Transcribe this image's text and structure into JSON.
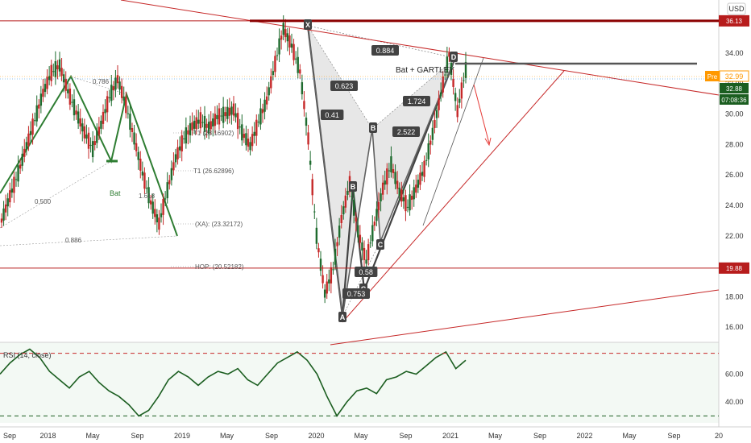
{
  "chart_data": {
    "type": "candlestick",
    "currency": "USD",
    "time_ticks": [
      "Sep",
      "2018",
      "May",
      "Sep",
      "2019",
      "May",
      "Sep",
      "2020",
      "May",
      "Sep",
      "2021",
      "May",
      "Sep",
      "2022",
      "May",
      "Sep",
      "20"
    ],
    "price_ticks": [
      16.0,
      18.0,
      20.0,
      22.0,
      24.0,
      26.0,
      28.0,
      30.0,
      32.0,
      34.0
    ],
    "price_range": [
      15.0,
      37.5
    ],
    "rsi": {
      "label": "RSI (14, close)",
      "ticks": [
        40.0,
        60.0
      ],
      "range": [
        25,
        80
      ],
      "upper_band": 75,
      "lower_band": 30
    },
    "horizontal_levels": [
      {
        "value": 36.13,
        "label": "36.13",
        "color": "#b71c1c"
      },
      {
        "value": 19.88,
        "label": "19.88",
        "color": "#b71c1c"
      }
    ],
    "current_price": {
      "pre_label": "Pre",
      "pre_value": "32.99",
      "value": "32.88",
      "countdown": "07:08:36"
    },
    "patterns": {
      "right": {
        "title": "Bat + GARTLEY",
        "points": [
          {
            "name": "X",
            "t": 2019.92,
            "p": 36.4
          },
          {
            "name": "A",
            "t": 2020.22,
            "p": 17.5
          },
          {
            "name": "B",
            "t": 2020.26,
            "p": 25.4
          },
          {
            "name": "C",
            "t": 2020.3,
            "p": 19.9
          },
          {
            "name": "D",
            "t": 2021.0,
            "p": 33.9
          },
          {
            "name": "B",
            "t": 2020.42,
            "p": 30.0
          },
          {
            "name": "C",
            "t": 2020.48,
            "p": 22.0
          }
        ],
        "ratios": [
          "0.884",
          "0.623",
          "0.41",
          "1.724",
          "2.522",
          "0.58",
          "0.753"
        ]
      },
      "left": {
        "title": "Bat",
        "ratios": [
          "0.786",
          "0.500",
          "1.618",
          "0.886"
        ],
        "levels": [
          "T1 (28.16902)",
          "T1 (26.62896)",
          "(XA): (23.32172)",
          "HOP: (20.52182)"
        ]
      }
    },
    "series": [
      {
        "name": "Price",
        "values": [
          23.0,
          24.6,
          26.1,
          27.9,
          29.6,
          31.4,
          32.7,
          33.2,
          31.5,
          30.1,
          28.8,
          27.7,
          29.3,
          31.1,
          32.3,
          30.6,
          28.4,
          26.1,
          24.2,
          22.8,
          25.0,
          27.1,
          28.4,
          29.2,
          29.6,
          29.1,
          29.8,
          30.0,
          30.3,
          28.8,
          27.9,
          29.5,
          30.9,
          33.3,
          35.6,
          34.5,
          32.8,
          28.4,
          22.0,
          18.2,
          19.8,
          23.1,
          25.4,
          22.3,
          20.3,
          22.8,
          25.1,
          26.7,
          24.9,
          23.9,
          25.1,
          26.4,
          28.7,
          31.3,
          33.9,
          30.2,
          32.9
        ]
      },
      {
        "name": "RSI",
        "values": [
          60,
          68,
          74,
          78,
          72,
          62,
          56,
          50,
          58,
          62,
          54,
          48,
          44,
          38,
          30,
          34,
          44,
          56,
          62,
          58,
          52,
          58,
          62,
          60,
          64,
          56,
          52,
          60,
          68,
          72,
          76,
          70,
          60,
          44,
          30,
          40,
          48,
          50,
          46,
          56,
          58,
          62,
          60,
          66,
          72,
          76,
          64,
          70
        ]
      }
    ]
  }
}
